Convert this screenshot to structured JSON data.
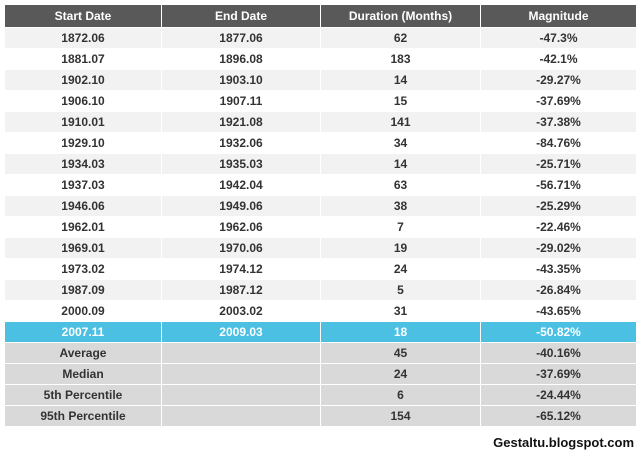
{
  "table": {
    "header": [
      "Start Date",
      "End Date",
      "Duration (Months)",
      "Magnitude"
    ],
    "rows": [
      [
        "1872.06",
        "1877.06",
        62,
        "-47.3%"
      ],
      [
        "1881.07",
        "1896.08",
        183,
        "-42.1%"
      ],
      [
        "1902.10",
        "1903.10",
        14,
        "-29.27%"
      ],
      [
        "1906.10",
        "1907.11",
        15,
        "-37.69%"
      ],
      [
        "1910.01",
        "1921.08",
        141,
        "-37.38%"
      ],
      [
        "1929.10",
        "1932.06",
        34,
        "-84.76%"
      ],
      [
        "1934.03",
        "1935.03",
        14,
        "-25.71%"
      ],
      [
        "1937.03",
        "1942.04",
        63,
        "-56.71%"
      ],
      [
        "1946.06",
        "1949.06",
        38,
        "-25.29%"
      ],
      [
        "1962.01",
        "1962.06",
        7,
        "-22.46%"
      ],
      [
        "1969.01",
        "1970.06",
        19,
        "-29.02%"
      ],
      [
        "1973.02",
        "1974.12",
        24,
        "-43.35%"
      ],
      [
        "1987.09",
        "1987.12",
        5,
        "-26.84%"
      ],
      [
        "2000.09",
        "2003.02",
        31,
        "-43.65%"
      ]
    ],
    "highlight_row": [
      "2007.11",
      "2009.03",
      18,
      "-50.82%"
    ],
    "summary": [
      [
        "Average",
        45,
        "-40.16%"
      ],
      [
        "Median",
        24,
        "-37.69%"
      ],
      [
        "5th Percentile",
        6,
        "-24.44%"
      ],
      [
        "95th Percentile",
        154,
        "-65.12%"
      ]
    ]
  },
  "footer": "Gestaltu.blogspot.com"
}
